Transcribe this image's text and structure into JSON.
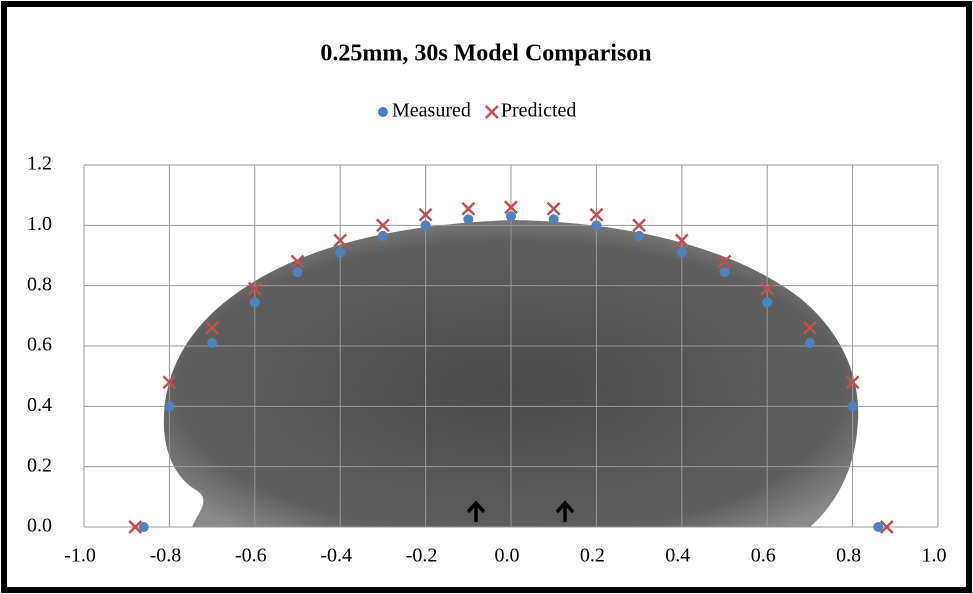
{
  "chart_data": {
    "type": "scatter",
    "title": "0.25mm, 30s Model Comparison",
    "series": [
      {
        "name": "Measured",
        "color": "#4f81bd",
        "x": [
          -0.86,
          -0.8,
          -0.7,
          -0.6,
          -0.5,
          -0.4,
          -0.3,
          -0.2,
          -0.1,
          0,
          0.1,
          0.2,
          0.3,
          0.4,
          0.5,
          0.6,
          0.7,
          0.8,
          0.86
        ],
        "values": [
          0,
          0.4,
          0.61,
          0.745,
          0.845,
          0.91,
          0.965,
          1.0,
          1.02,
          1.03,
          1.02,
          1.0,
          0.965,
          0.91,
          0.845,
          0.745,
          0.61,
          0.4,
          0
        ]
      },
      {
        "name": "Predicted",
        "color": "#c0504d",
        "x": [
          -0.88,
          -0.8,
          -0.7,
          -0.6,
          -0.5,
          -0.4,
          -0.3,
          -0.2,
          -0.1,
          0,
          0.1,
          0.2,
          0.3,
          0.4,
          0.5,
          0.6,
          0.7,
          0.8,
          0.88
        ],
        "values": [
          0,
          0.48,
          0.66,
          0.79,
          0.88,
          0.95,
          1.0,
          1.035,
          1.055,
          1.06,
          1.055,
          1.035,
          1.0,
          0.95,
          0.88,
          0.79,
          0.66,
          0.48,
          0
        ]
      }
    ],
    "xlim": [
      -1,
      1
    ],
    "xticks": [
      {
        "value": -1,
        "label": "-1.0"
      },
      -0.8,
      -0.6,
      -0.4,
      -0.2,
      {
        "value": 0,
        "label": "0.0"
      },
      0.2,
      0.4,
      0.6,
      0.8,
      {
        "value": 1,
        "label": "1.0"
      }
    ],
    "ylim": [
      0,
      1.2
    ],
    "yticks": [
      {
        "value": 0,
        "label": "0.0"
      },
      0.2,
      0.4,
      0.6,
      0.8,
      {
        "value": 1,
        "label": "1.0"
      },
      1.2
    ],
    "grid": true,
    "legend": "top"
  }
}
